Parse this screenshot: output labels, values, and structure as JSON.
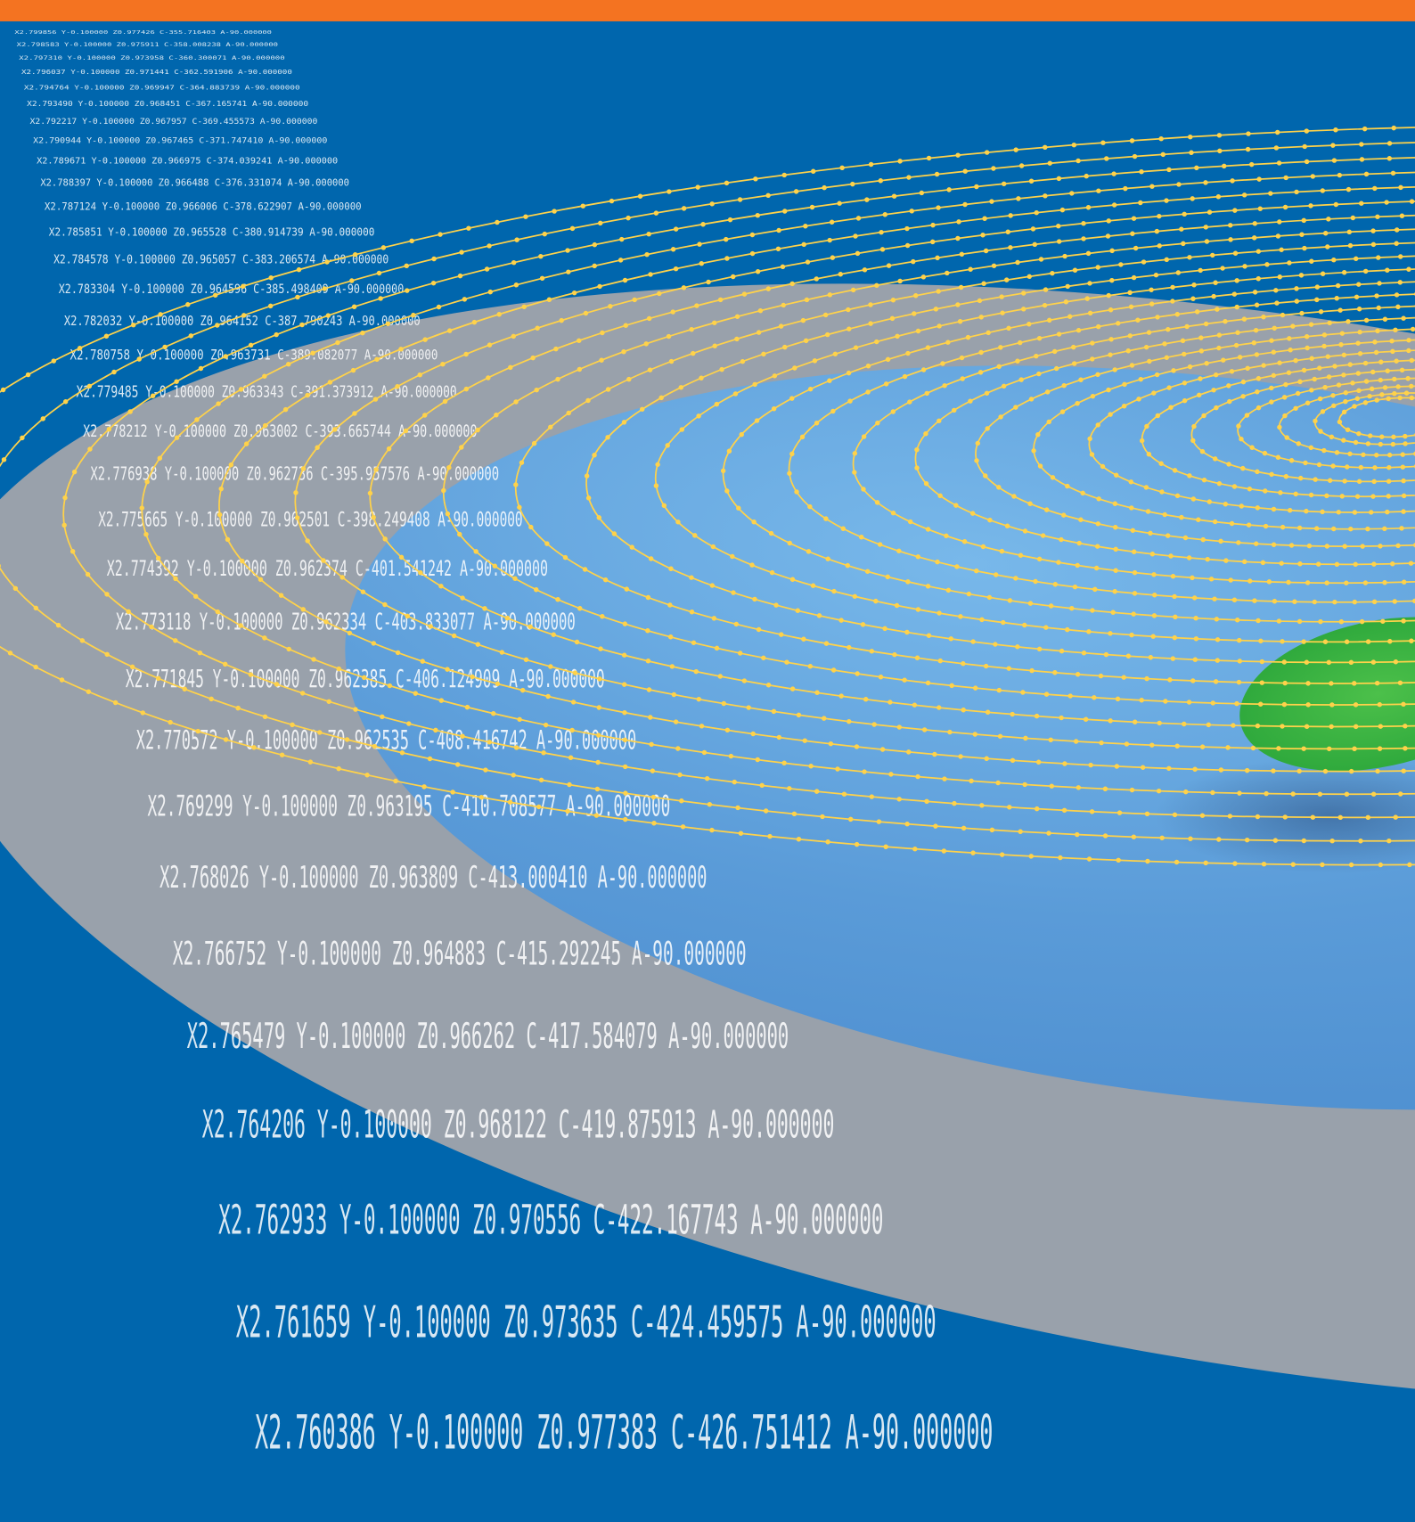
{
  "code_lines": [
    "X2.799856 Y-0.100000 Z0.977426 C-355.716403 A-90.000000",
    "X2.798583 Y-0.100000 Z0.975911 C-358.008238 A-90.000000",
    "X2.797310 Y-0.100000 Z0.973958 C-360.300071 A-90.000000",
    "X2.796037 Y-0.100000 Z0.971441 C-362.591906 A-90.000000",
    "X2.794764 Y-0.100000 Z0.969947 C-364.883739 A-90.000000",
    "X2.793490 Y-0.100000 Z0.968451 C-367.165741 A-90.000000",
    "X2.792217 Y-0.100000 Z0.967957 C-369.455573 A-90.000000",
    "X2.790944 Y-0.100000 Z0.967465 C-371.747410 A-90.000000",
    "X2.789671 Y-0.100000 Z0.966975 C-374.039241 A-90.000000",
    "X2.788397 Y-0.100000 Z0.966488 C-376.331074 A-90.000000",
    "X2.787124 Y-0.100000 Z0.966006 C-378.622907 A-90.000000",
    "X2.785851 Y-0.100000 Z0.965528 C-380.914739 A-90.000000",
    "X2.784578 Y-0.100000 Z0.965057 C-383.206574 A-90.000000",
    "X2.783304 Y-0.100000 Z0.964596 C-385.498409 A-90.000000",
    "X2.782032 Y-0.100000 Z0.964152 C-387.790243 A-90.000000",
    "X2.780758 Y-0.100000 Z0.963731 C-389.082077 A-90.000000",
    "X2.779485 Y-0.100000 Z0.963343 C-391.373912 A-90.000000",
    "X2.778212 Y-0.100000 Z0.963002 C-393.665744 A-90.000000",
    "X2.776938 Y-0.100000 Z0.962736 C-395.957576 A-90.000000",
    "X2.775665 Y-0.100000 Z0.962501 C-398.249408 A-90.000000",
    "X2.774392 Y-0.100000 Z0.962374 C-401.541242 A-90.000000",
    "X2.773118 Y-0.100000 Z0.962334 C-403.833077 A-90.000000",
    "X2.771845 Y-0.100000 Z0.962385 C-406.124909 A-90.000000",
    "X2.770572 Y-0.100000 Z0.962535 C-408.416742 A-90.000000",
    "X2.769299 Y-0.100000 Z0.963195 C-410.708577 A-90.000000",
    "X2.768026 Y-0.100000 Z0.963809 C-413.000410 A-90.000000",
    "X2.766752 Y-0.100000 Z0.964883 C-415.292245 A-90.000000",
    "X2.765479 Y-0.100000 Z0.966262 C-417.584079 A-90.000000",
    "X2.764206 Y-0.100000 Z0.968122 C-419.875913 A-90.000000",
    "X2.762933 Y-0.100000 Z0.970556 C-422.167743 A-90.000000",
    "X2.761659 Y-0.100000 Z0.973635 C-424.459575 A-90.000000",
    "X2.760386 Y-0.100000 Z0.977383 C-426.751412 A-90.000000"
  ]
}
